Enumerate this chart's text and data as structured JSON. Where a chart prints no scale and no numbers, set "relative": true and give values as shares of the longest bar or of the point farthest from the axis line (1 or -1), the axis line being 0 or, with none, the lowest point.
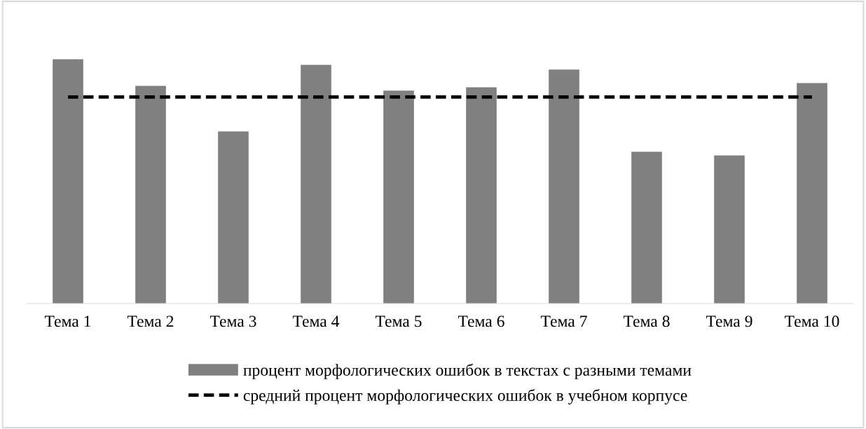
{
  "chart_data": {
    "type": "bar",
    "relative": true,
    "categories": [
      "Тема 1",
      "Тема 2",
      "Тема 3",
      "Тема 4",
      "Тема 5",
      "Тема 6",
      "Тема 7",
      "Тема 8",
      "Тема 9",
      "Тема 10"
    ],
    "series": [
      {
        "name": "процент морфологических ошибок в текстах с разными темами",
        "color": "#808080",
        "values": [
          1.0,
          0.891,
          0.704,
          0.977,
          0.871,
          0.885,
          0.957,
          0.621,
          0.606,
          0.902
        ]
      },
      {
        "name": "средний процент морфологических ошибок в учебном корпусе",
        "type": "line",
        "color": "#000000",
        "line_style": "dashed",
        "values": [
          0.845,
          0.845,
          0.845,
          0.845,
          0.845,
          0.845,
          0.845,
          0.845,
          0.845,
          0.845
        ]
      }
    ],
    "legend": "bottom",
    "grid": false
  }
}
